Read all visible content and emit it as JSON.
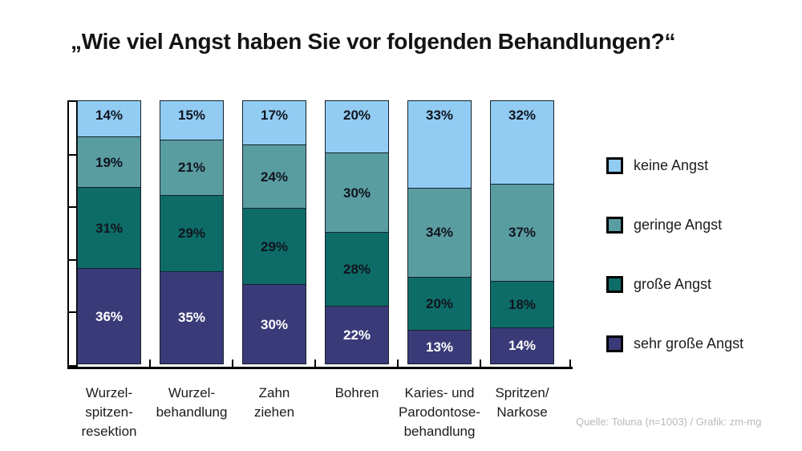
{
  "page": {
    "background": "#ffffff"
  },
  "chart_data": {
    "type": "bar",
    "subtype": "stacked-vertical-100",
    "title": "„Wie viel Angst haben Sie vor folgenden Behandlungen?“",
    "categories": [
      {
        "id": "wurzelspitzenresektion",
        "label_lines": [
          "Wurzel-",
          "spitzen-",
          "resektion"
        ]
      },
      {
        "id": "wurzelbehandlung",
        "label_lines": [
          "Wurzel-",
          "behandlung"
        ]
      },
      {
        "id": "zahn-ziehen",
        "label_lines": [
          "Zahn",
          "ziehen"
        ]
      },
      {
        "id": "bohren",
        "label_lines": [
          "Bohren"
        ]
      },
      {
        "id": "karies-parodontose",
        "label_lines": [
          "Karies- und",
          "Parodontose-",
          "behandlung"
        ]
      },
      {
        "id": "spritzen-narkose",
        "label_lines": [
          "Spritzen/",
          "Narkose"
        ]
      }
    ],
    "series": [
      {
        "name": "keine Angst",
        "color": "#92ccf3",
        "label_color": "#10141f",
        "values": [
          14,
          15,
          17,
          20,
          33,
          32
        ]
      },
      {
        "name": "geringe Angst",
        "color": "#5a9da1",
        "label_color": "#10141f",
        "values": [
          19,
          21,
          24,
          30,
          34,
          37
        ]
      },
      {
        "name": "große Angst",
        "color": "#0d6c67",
        "label_color": "#10141f",
        "values": [
          31,
          29,
          29,
          28,
          20,
          18
        ]
      },
      {
        "name": "sehr große Angst",
        "color": "#3b3a78",
        "label_color": "#ffffff",
        "values": [
          36,
          35,
          30,
          22,
          13,
          14
        ]
      }
    ],
    "value_suffix": "%",
    "y_axis": {
      "min": 0,
      "max": 100,
      "tick_step_percent": 20,
      "tick_labels_visible": false
    },
    "grid": "off",
    "legend_position": "right",
    "source": "Quelle: Toluna (n=1003) / Grafik: zm-mg"
  }
}
